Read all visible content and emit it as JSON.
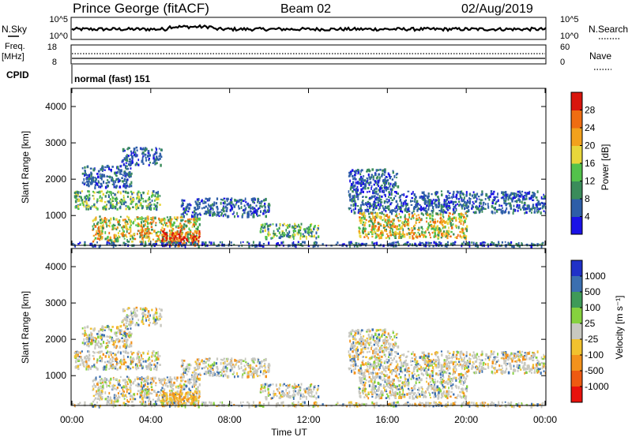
{
  "header": {
    "station": "Prince George (fitACF)",
    "beam": "Beam 02",
    "date": "02/Aug/2019"
  },
  "panels": {
    "nsky_label": "N.Sky",
    "nsky_ticks": [
      "10^5",
      "10^0"
    ],
    "nsearch_label": "N.Search",
    "nsearch_ticks": [
      "10^5",
      "10^0"
    ],
    "freq_label": "Freq.",
    "freq_unit": "[MHz]",
    "freq_ticks": [
      "18",
      "8"
    ],
    "nave_label": "Nave",
    "nave_ticks": [
      "60",
      "0"
    ],
    "cpid_label": "CPID",
    "cpid_value": "normal (fast) 151"
  },
  "chart_data": [
    {
      "type": "heatmap",
      "name": "power",
      "ylabel": "Slant Range [km]",
      "yticks": [
        "1000",
        "2000",
        "3000",
        "4000"
      ],
      "ylim": [
        180,
        4500
      ],
      "colorbar_label": "Power [dB]",
      "colorbar_ticks": [
        "4",
        "8",
        "12",
        "16",
        "20",
        "24",
        "28"
      ],
      "colorbar_colors": [
        "#1a12e6",
        "#2e5ea8",
        "#3a8c5a",
        "#53c24b",
        "#e8d63a",
        "#f2a11c",
        "#ef6d12",
        "#d9150d"
      ],
      "echo_regions": [
        {
          "t": [
            0.1,
            4.5
          ],
          "range": [
            1200,
            1700
          ],
          "level": "medium"
        },
        {
          "t": [
            0.5,
            3.0
          ],
          "range": [
            1800,
            2400
          ],
          "level": "low"
        },
        {
          "t": [
            2.5,
            4.5
          ],
          "range": [
            2400,
            2900
          ],
          "level": "low"
        },
        {
          "t": [
            1.0,
            6.5
          ],
          "range": [
            300,
            1000
          ],
          "level": "high"
        },
        {
          "t": [
            4.5,
            6.5
          ],
          "range": [
            180,
            600
          ],
          "level": "very-high"
        },
        {
          "t": [
            5.5,
            10.0
          ],
          "range": [
            1000,
            1500
          ],
          "level": "low"
        },
        {
          "t": [
            9.5,
            12.5
          ],
          "range": [
            400,
            800
          ],
          "level": "medium"
        },
        {
          "t": [
            14.0,
            24.0
          ],
          "range": [
            1100,
            1700
          ],
          "level": "low"
        },
        {
          "t": [
            14.0,
            16.5
          ],
          "range": [
            1700,
            2300
          ],
          "level": "low"
        },
        {
          "t": [
            14.5,
            20.0
          ],
          "range": [
            400,
            1100
          ],
          "level": "high"
        },
        {
          "t": [
            0.0,
            24.0
          ],
          "range": [
            180,
            300
          ],
          "level": "low"
        }
      ]
    },
    {
      "type": "heatmap",
      "name": "velocity",
      "ylabel": "Slant Range [km]",
      "yticks": [
        "1000",
        "2000",
        "3000",
        "4000"
      ],
      "ylim": [
        180,
        4500
      ],
      "colorbar_label": "Velocity [m s⁻¹]",
      "colorbar_ticks": [
        "1000",
        "500",
        "100",
        "25",
        "-25",
        "-100",
        "-500",
        "-1000"
      ],
      "colorbar_colors": [
        "#2031c8",
        "#3b6fb0",
        "#3f9a58",
        "#86d13e",
        "#c8c8c0",
        "#f2c22e",
        "#f3921c",
        "#ee5a12",
        "#e8110c"
      ],
      "xlabel": "Time UT",
      "xticks": [
        "00:00",
        "04:00",
        "08:00",
        "12:00",
        "16:00",
        "20:00",
        "00:00"
      ],
      "xlim": [
        0,
        24
      ]
    }
  ]
}
